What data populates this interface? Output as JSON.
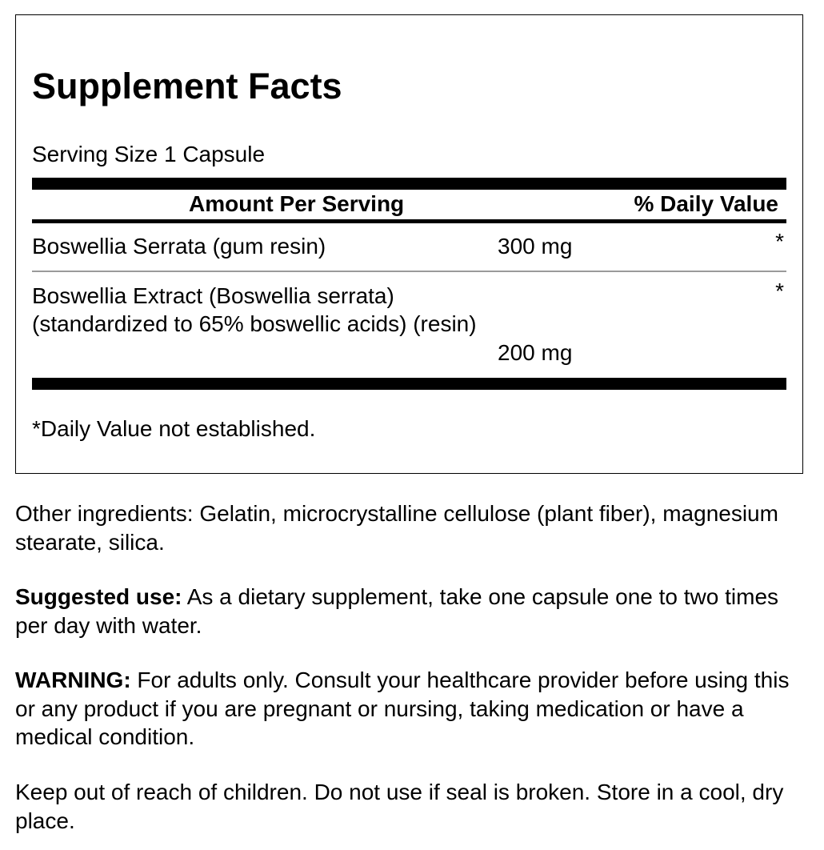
{
  "facts": {
    "title": "Supplement Facts",
    "serving_size": "Serving Size 1 Capsule",
    "header_amount": "Amount Per Serving",
    "header_dv": "% Daily Value",
    "rows": [
      {
        "name_lines": [
          "Boswellia Serrata (gum resin)"
        ],
        "amount": "300 mg",
        "dv": "*"
      },
      {
        "name_lines": [
          "Boswellia Extract (Boswellia serrata)",
          "(standardized to 65% boswellic acids) (resin)"
        ],
        "amount": "200 mg",
        "dv": "*"
      }
    ],
    "footnote": "*Daily Value not established."
  },
  "other_ingredients": "Other ingredients: Gelatin, microcrystalline cellulose (plant fiber), magnesium stearate, silica.",
  "suggested_use": {
    "label": "Suggested use:",
    "text": " As a dietary supplement, take one capsule one to two times per day with water."
  },
  "warning": {
    "label": "WARNING:",
    "text": " For adults only. Consult your healthcare provider before using this or any product if you are pregnant or nursing, taking medication or have a medical condition."
  },
  "storage": "Keep out of reach of children. Do not use if seal is broken. Store in a cool, dry place."
}
